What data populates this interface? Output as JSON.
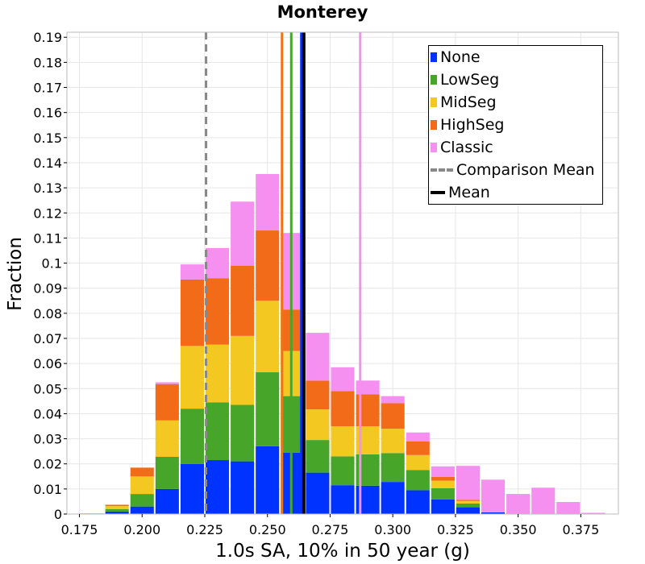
{
  "chart_data": {
    "type": "bar",
    "stacked": true,
    "title": "Monterey",
    "xlabel": "1.0s SA, 10% in 50 year (g)",
    "ylabel": "Fraction",
    "xlim": [
      0.17,
      0.39
    ],
    "ylim": [
      0,
      0.192
    ],
    "bin_width": 0.01,
    "x": [
      0.18,
      0.19,
      0.2,
      0.21,
      0.22,
      0.23,
      0.24,
      0.25,
      0.26,
      0.27,
      0.28,
      0.29,
      0.3,
      0.31,
      0.32,
      0.33,
      0.34,
      0.35,
      0.36,
      0.37,
      0.38
    ],
    "series": [
      {
        "name": "None",
        "color": "#0033ff",
        "values": [
          0,
          0.001,
          0.003,
          0.01,
          0.02,
          0.0215,
          0.021,
          0.027,
          0.0245,
          0.0165,
          0.0115,
          0.0113,
          0.0128,
          0.0095,
          0.0058,
          0.0027,
          0.0007,
          0,
          0,
          0,
          0
        ]
      },
      {
        "name": "LowSeg",
        "color": "#47a52a",
        "values": [
          0,
          0.001,
          0.005,
          0.0128,
          0.022,
          0.023,
          0.0225,
          0.0295,
          0.0225,
          0.013,
          0.0115,
          0.0125,
          0.0115,
          0.008,
          0.0045,
          0.0015,
          0,
          0,
          0,
          0,
          0
        ]
      },
      {
        "name": "MidSeg",
        "color": "#f2c821",
        "values": [
          0.0003,
          0.0012,
          0.007,
          0.0145,
          0.025,
          0.023,
          0.0275,
          0.0285,
          0.018,
          0.0122,
          0.012,
          0.0112,
          0.0097,
          0.006,
          0.003,
          0.001,
          0,
          0,
          0,
          0,
          0
        ]
      },
      {
        "name": "HighSeg",
        "color": "#f26b19",
        "values": [
          0,
          0.0005,
          0.0035,
          0.0145,
          0.0265,
          0.0265,
          0.028,
          0.028,
          0.0165,
          0.0115,
          0.014,
          0.0127,
          0.0102,
          0.0055,
          0.0015,
          0.0005,
          0,
          0,
          0,
          0,
          0
        ]
      },
      {
        "name": "Classic",
        "color": "#f58ff0",
        "values": [
          0,
          0,
          0,
          0.0007,
          0.006,
          0.012,
          0.0255,
          0.0225,
          0.0305,
          0.019,
          0.0095,
          0.0055,
          0.0028,
          0.0035,
          0.0042,
          0.0135,
          0.013,
          0.008,
          0.0105,
          0.0048,
          0.0005
        ]
      }
    ],
    "vlines": [
      {
        "name": "None",
        "x": 0.2635,
        "color": "#0033ff",
        "style": "solid"
      },
      {
        "name": "LowSeg",
        "x": 0.2595,
        "color": "#47a52a",
        "style": "solid"
      },
      {
        "name": "HighSeg",
        "x": 0.2558,
        "color": "#f07410",
        "style": "solid"
      },
      {
        "name": "Classic",
        "x": 0.287,
        "color": "#f58ff0",
        "style": "solid"
      },
      {
        "name": "Comparison Mean",
        "x": 0.2255,
        "color": "#888888",
        "style": "dashed"
      },
      {
        "name": "Mean",
        "x": 0.2645,
        "color": "#000000",
        "style": "solid"
      }
    ],
    "x_ticks": [
      "0.175",
      "0.200",
      "0.225",
      "0.250",
      "0.275",
      "0.300",
      "0.325",
      "0.350",
      "0.375"
    ],
    "y_ticks": [
      "0",
      "0.01",
      "0.02",
      "0.03",
      "0.04",
      "0.05",
      "0.06",
      "0.07",
      "0.08",
      "0.09",
      "0.1",
      "0.11",
      "0.12",
      "0.13",
      "0.14",
      "0.15",
      "0.16",
      "0.17",
      "0.18",
      "0.19"
    ],
    "grid": true,
    "legend_position": "top-right",
    "legend": [
      {
        "label": "None",
        "color": "#0033ff",
        "kind": "swatch"
      },
      {
        "label": "LowSeg",
        "color": "#47a52a",
        "kind": "swatch"
      },
      {
        "label": "MidSeg",
        "color": "#f2c821",
        "kind": "swatch"
      },
      {
        "label": "HighSeg",
        "color": "#f26b19",
        "kind": "swatch"
      },
      {
        "label": "Classic",
        "color": "#f58ff0",
        "kind": "swatch"
      },
      {
        "label": "Comparison Mean",
        "color": "#888888",
        "kind": "dashed"
      },
      {
        "label": "Mean",
        "color": "#000000",
        "kind": "solid"
      }
    ]
  }
}
